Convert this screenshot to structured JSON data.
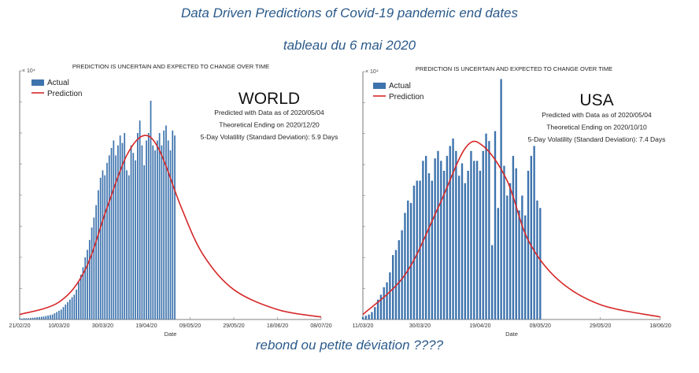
{
  "page": {
    "title": "Data Driven Predictions of Covid-19 pandemic end dates",
    "subtitle": "tableau du 6 mai 2020",
    "footer": "rebond ou petite déviation ????"
  },
  "colors": {
    "header_text": "#2b5a8a",
    "actual_bar": "#3d73ad",
    "prediction_line": "#d62728"
  },
  "chart_data": [
    {
      "type": "bar",
      "banner": "PREDICTION IS UNCERTAIN AND EXPECTED TO CHANGE OVER TIME",
      "region": "WORLD",
      "info": [
        "Predicted with Data as of 2020/05/04",
        "Theoretical Ending on 2020/12/20",
        "5-Day Volatility (Standard Deviation): 5.9 Days"
      ],
      "y_exponent": "× 10⁴",
      "xlabel": "Date",
      "x_ticks": [
        "21/02/20",
        "10/03/20",
        "30/03/20",
        "19/04/20",
        "09/05/20",
        "29/05/20",
        "18/06/20",
        "08/07/20"
      ],
      "x_days": {
        "start": "2020-02-21",
        "end": "2020-07-08"
      },
      "ylim": [
        0,
        1.0
      ],
      "legend": [
        "Actual",
        "Prediction"
      ],
      "actual_start": "2020-02-21",
      "actual": [
        0.004,
        0.004,
        0.005,
        0.005,
        0.005,
        0.006,
        0.007,
        0.008,
        0.009,
        0.01,
        0.011,
        0.012,
        0.014,
        0.016,
        0.018,
        0.02,
        0.025,
        0.03,
        0.035,
        0.04,
        0.05,
        0.06,
        0.07,
        0.08,
        0.09,
        0.1,
        0.12,
        0.15,
        0.18,
        0.21,
        0.25,
        0.28,
        0.32,
        0.37,
        0.41,
        0.46,
        0.52,
        0.57,
        0.6,
        0.58,
        0.63,
        0.66,
        0.69,
        0.72,
        0.66,
        0.7,
        0.74,
        0.71,
        0.75,
        0.6,
        0.58,
        0.7,
        0.67,
        0.64,
        0.75,
        0.8,
        0.7,
        0.62,
        0.72,
        0.75,
        0.88,
        0.7,
        0.68,
        0.72,
        0.75,
        0.7,
        0.76,
        0.78,
        0.72,
        0.68,
        0.76,
        0.74
      ],
      "prediction": {
        "x": [
          "2020-02-21",
          "2020-03-10",
          "2020-03-22",
          "2020-04-01",
          "2020-04-10",
          "2020-04-18",
          "2020-04-25",
          "2020-05-05",
          "2020-05-15",
          "2020-05-29",
          "2020-06-18",
          "2020-07-08"
        ],
        "y": [
          0.02,
          0.07,
          0.2,
          0.45,
          0.66,
          0.74,
          0.68,
          0.45,
          0.26,
          0.12,
          0.04,
          0.01
        ]
      }
    },
    {
      "type": "bar",
      "banner": "PREDICTION IS UNCERTAIN AND EXPECTED TO CHANGE OVER TIME",
      "region": "USA",
      "info": [
        "Predicted with Data as of 2020/05/04",
        "Theoretical Ending on 2020/10/10",
        "5-Day Volatility (Standard Deviation): 7.4 Days"
      ],
      "y_exponent": "× 10⁴",
      "xlabel": "Date",
      "x_ticks": [
        "11/03/20",
        "30/03/20",
        "19/04/20",
        "09/05/20",
        "29/05/20",
        "18/06/20"
      ],
      "x_days": {
        "start": "2020-03-11",
        "end": "2020-06-18"
      },
      "ylim": [
        0,
        1.0
      ],
      "legend": [
        "Actual",
        "Prediction"
      ],
      "actual_start": "2020-03-11",
      "actual": [
        0.01,
        0.015,
        0.02,
        0.03,
        0.05,
        0.08,
        0.1,
        0.13,
        0.15,
        0.19,
        0.26,
        0.28,
        0.32,
        0.36,
        0.43,
        0.48,
        0.47,
        0.54,
        0.56,
        0.56,
        0.64,
        0.66,
        0.59,
        0.56,
        0.65,
        0.68,
        0.64,
        0.6,
        0.66,
        0.7,
        0.73,
        0.68,
        0.58,
        0.63,
        0.55,
        0.6,
        0.68,
        0.64,
        0.64,
        0.6,
        0.68,
        0.75,
        0.72,
        0.3,
        0.76,
        0.45,
        0.97,
        0.62,
        0.5,
        0.55,
        0.66,
        0.61,
        0.44,
        0.5,
        0.42,
        0.6,
        0.66,
        0.7,
        0.48,
        0.45
      ],
      "prediction": {
        "x": [
          "2020-03-11",
          "2020-03-25",
          "2020-04-05",
          "2020-04-14",
          "2020-04-20",
          "2020-04-28",
          "2020-05-05",
          "2020-05-15",
          "2020-05-29",
          "2020-06-18"
        ],
        "y": [
          0.02,
          0.18,
          0.45,
          0.69,
          0.7,
          0.56,
          0.32,
          0.16,
          0.06,
          0.01
        ]
      }
    }
  ]
}
